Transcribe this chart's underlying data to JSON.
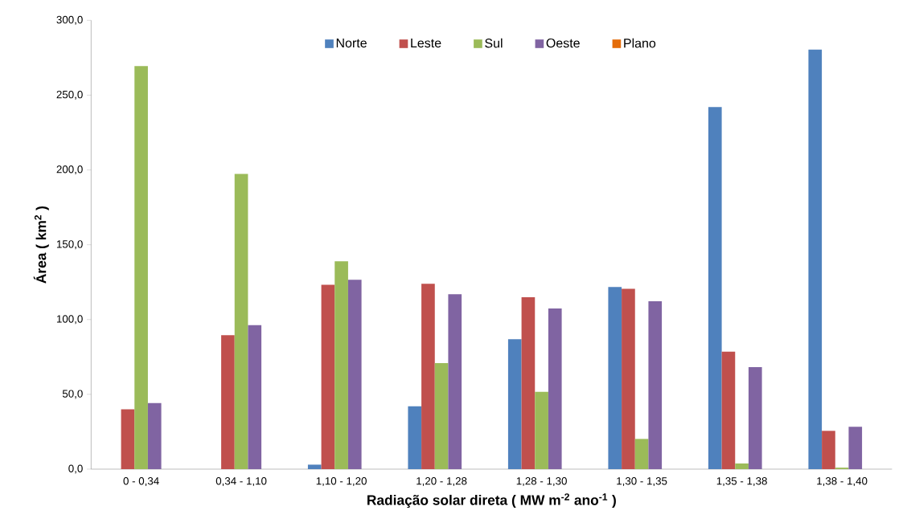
{
  "chart_data": {
    "type": "bar",
    "xlabel": "Radiação solar direta ( MW m$^{-2}$ ano$^{-1}$ )",
    "ylabel": "Área ( km$^{2}$ )",
    "categories": [
      "0 - 0,34",
      "0,34 - 1,10",
      "1,10 - 1,20",
      "1,20 - 1,28",
      "1,28 - 1,30",
      "1,30 - 1,35",
      "1,35 - 1,38",
      "1,38 - 1,40"
    ],
    "series": [
      {
        "name": "Norte",
        "color": "#4f81bd",
        "values": [
          0,
          0,
          3.0,
          42.0,
          86.8,
          121.7,
          242.0,
          280.4
        ]
      },
      {
        "name": "Leste",
        "color": "#c0504d",
        "values": [
          40.0,
          89.6,
          123.3,
          123.9,
          114.9,
          120.5,
          78.5,
          25.6
        ]
      },
      {
        "name": "Sul",
        "color": "#9bbb59",
        "values": [
          269.5,
          197.4,
          138.9,
          70.9,
          51.7,
          20.2,
          3.8,
          1.0
        ]
      },
      {
        "name": "Oeste",
        "color": "#8064a2",
        "values": [
          44.2,
          96.3,
          126.6,
          116.9,
          107.4,
          112.2,
          68.2,
          28.3
        ]
      },
      {
        "name": "Plano",
        "color": "#e46c0a",
        "values": [
          0,
          0,
          0,
          0,
          0,
          0,
          0,
          0
        ]
      }
    ],
    "ylim": [
      0,
      300
    ],
    "yticks": [
      {
        "value": 0,
        "label": "0,0"
      },
      {
        "value": 50,
        "label": "50,0"
      },
      {
        "value": 100,
        "label": "100,0"
      },
      {
        "value": 150,
        "label": "150,0"
      },
      {
        "value": 200,
        "label": "200,0"
      },
      {
        "value": 250,
        "label": "250,0"
      },
      {
        "value": 300,
        "label": "300,0"
      }
    ],
    "legend": "top"
  }
}
